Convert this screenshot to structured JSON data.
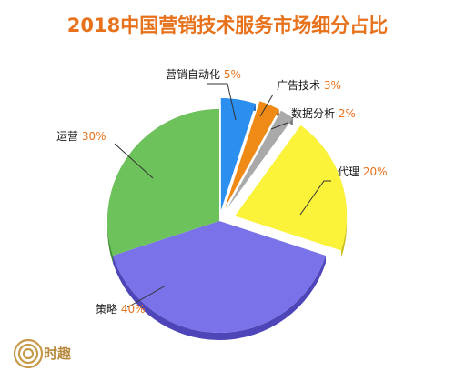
{
  "title": "2018中国营销技术服务市场细分占比",
  "logo": {
    "text": "时趣"
  },
  "chart_data": {
    "type": "pie",
    "title": "2018中国营销技术服务市场细分占比",
    "unit": "%",
    "slices": [
      {
        "label": "营销自动化",
        "value": 5,
        "value_text": "5%",
        "color": "#2b8ff0",
        "color_dark": "#1763b8"
      },
      {
        "label": "广告技术",
        "value": 3,
        "value_text": "3%",
        "color": "#f08a16",
        "color_dark": "#b55f06"
      },
      {
        "label": "数据分析",
        "value": 2,
        "value_text": "2%",
        "color": "#a9a9a9",
        "color_dark": "#7a7a7a"
      },
      {
        "label": "代理",
        "value": 20,
        "value_text": "20%",
        "color": "#fbf23a",
        "color_dark": "#c9bd14"
      },
      {
        "label": "策略",
        "value": 40,
        "value_text": "40%",
        "color": "#7a72e8",
        "color_dark": "#4e46b8"
      },
      {
        "label": "运营",
        "value": 30,
        "value_text": "30%",
        "color": "#6ec25b",
        "color_dark": "#3e8c30"
      }
    ]
  }
}
